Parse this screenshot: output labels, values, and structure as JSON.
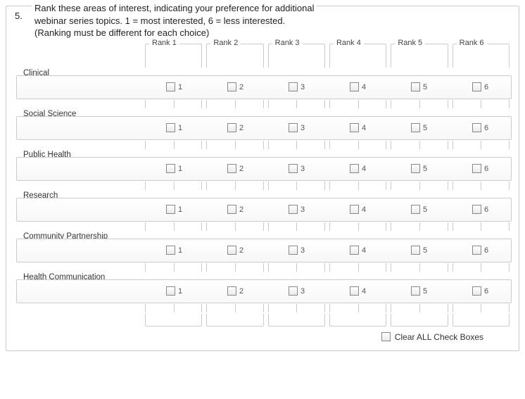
{
  "question": {
    "number": "5.",
    "text_line1": "Rank these areas of interest, indicating your preference for additional",
    "text_line2": "webinar series topics. 1 = most interested, 6 = less interested.",
    "text_line3": "(Ranking must be different for each choice)"
  },
  "ranks": [
    "Rank 1",
    "Rank 2",
    "Rank 3",
    "Rank 4",
    "Rank 5",
    "Rank 6"
  ],
  "rank_values": [
    "1",
    "2",
    "3",
    "4",
    "5",
    "6"
  ],
  "rows": [
    {
      "label": "Clinical"
    },
    {
      "label": "Social Science"
    },
    {
      "label": "Public Health"
    },
    {
      "label": "Research"
    },
    {
      "label": "Community Partnership"
    },
    {
      "label": "Health Communication"
    }
  ],
  "clear_label": "Clear ALL Check Boxes"
}
